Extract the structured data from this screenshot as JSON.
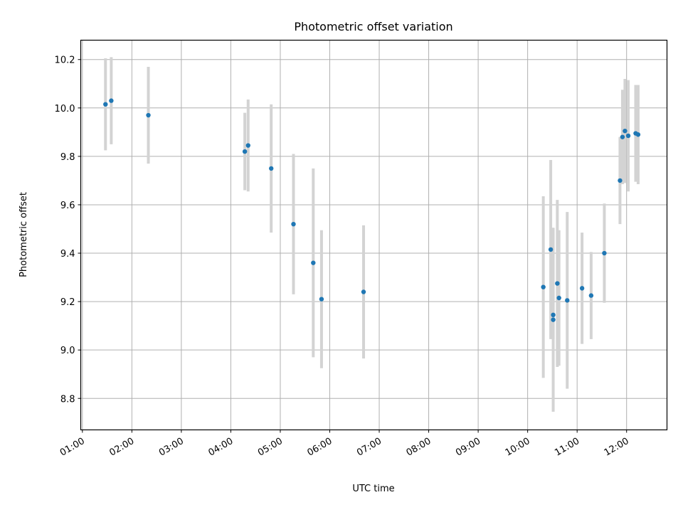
{
  "chart_data": {
    "type": "scatter",
    "title": "Photometric offset variation",
    "xlabel": "UTC time",
    "ylabel": "Photometric offset",
    "x_ticks": [
      "01:00",
      "02:00",
      "03:00",
      "04:00",
      "05:00",
      "06:00",
      "07:00",
      "08:00",
      "09:00",
      "10:00",
      "11:00",
      "12:00"
    ],
    "y_ticks": [
      "8.8",
      "9.0",
      "9.2",
      "9.4",
      "9.6",
      "9.8",
      "10.0",
      "10.2"
    ],
    "xlim": [
      "00:58",
      "12:49"
    ],
    "ylim": [
      8.67,
      10.28
    ],
    "grid": true,
    "colors": {
      "point": "#1f77b4",
      "errorbar": "#d3d3d3",
      "grid": "#b0b0b0"
    },
    "points": [
      {
        "x": "01:28",
        "y": 10.015,
        "err": 0.19
      },
      {
        "x": "01:35",
        "y": 10.03,
        "err": 0.18
      },
      {
        "x": "02:20",
        "y": 9.97,
        "err": 0.2
      },
      {
        "x": "04:17",
        "y": 9.82,
        "err": 0.16
      },
      {
        "x": "04:21",
        "y": 9.845,
        "err": 0.19
      },
      {
        "x": "04:49",
        "y": 9.75,
        "err": 0.265
      },
      {
        "x": "05:16",
        "y": 9.52,
        "err": 0.29
      },
      {
        "x": "05:40",
        "y": 9.36,
        "err": 0.39
      },
      {
        "x": "05:50",
        "y": 9.21,
        "err": 0.285
      },
      {
        "x": "06:41",
        "y": 9.24,
        "err": 0.275
      },
      {
        "x": "10:19",
        "y": 9.26,
        "err": 0.375
      },
      {
        "x": "10:28",
        "y": 9.415,
        "err": 0.37
      },
      {
        "x": "10:31",
        "y": 9.145,
        "err": 0.1
      },
      {
        "x": "10:31",
        "y": 9.125,
        "err": 0.38
      },
      {
        "x": "10:36",
        "y": 9.275,
        "err": 0.345
      },
      {
        "x": "10:38",
        "y": 9.215,
        "err": 0.28
      },
      {
        "x": "10:48",
        "y": 9.205,
        "err": 0.365
      },
      {
        "x": "11:06",
        "y": 9.255,
        "err": 0.23
      },
      {
        "x": "11:17",
        "y": 9.225,
        "err": 0.18
      },
      {
        "x": "11:33",
        "y": 9.4,
        "err": 0.205
      },
      {
        "x": "11:52",
        "y": 9.7,
        "err": 0.18
      },
      {
        "x": "11:55",
        "y": 9.88,
        "err": 0.195
      },
      {
        "x": "11:58",
        "y": 9.905,
        "err": 0.215
      },
      {
        "x": "12:02",
        "y": 9.885,
        "err": 0.23
      },
      {
        "x": "12:11",
        "y": 9.895,
        "err": 0.2
      },
      {
        "x": "12:14",
        "y": 9.89,
        "err": 0.205
      }
    ]
  }
}
